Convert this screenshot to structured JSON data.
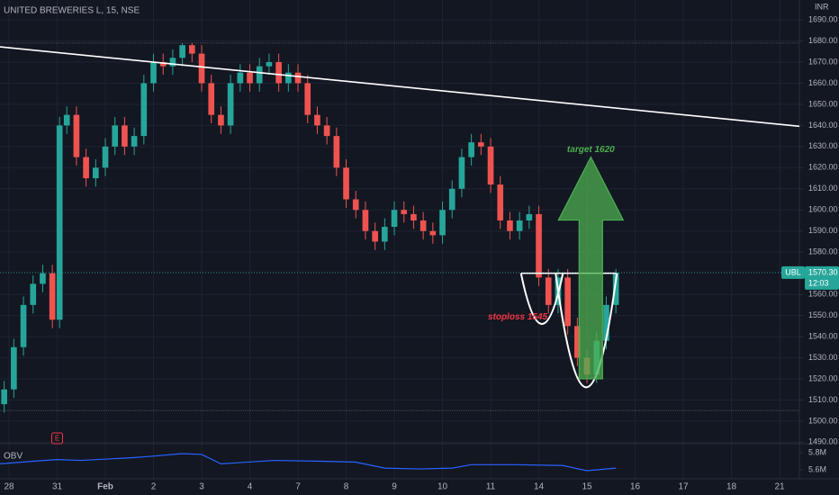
{
  "chart_data": {
    "type": "candlestick",
    "title": "UNITED BREWERIES L, 15, NSE",
    "currency": "INR",
    "xlim": [
      -0.187,
      16.41
    ],
    "xticks": [
      {
        "value": 0,
        "label": "28"
      },
      {
        "value": 1,
        "label": "31"
      },
      {
        "value": 2,
        "label": "Feb"
      },
      {
        "value": 3,
        "label": "2"
      },
      {
        "value": 4,
        "label": "3"
      },
      {
        "value": 5,
        "label": "4"
      },
      {
        "value": 6,
        "label": "7"
      },
      {
        "value": 7,
        "label": "8"
      },
      {
        "value": 8,
        "label": "9"
      },
      {
        "value": 9,
        "label": "10"
      },
      {
        "value": 10,
        "label": "11"
      },
      {
        "value": 11,
        "label": "14"
      },
      {
        "value": 12,
        "label": "15"
      },
      {
        "value": 13,
        "label": "16"
      },
      {
        "value": 14,
        "label": "17"
      },
      {
        "value": 15,
        "label": "18"
      },
      {
        "value": 16,
        "label": "21"
      }
    ],
    "ylim": [
      1489.3,
      1699.4
    ],
    "yticks": [
      {
        "value": 1490,
        "label": "1490.00"
      },
      {
        "value": 1500,
        "label": "1500.00"
      },
      {
        "value": 1510,
        "label": "1510.00"
      },
      {
        "value": 1520,
        "label": "1520.00"
      },
      {
        "value": 1530,
        "label": "1530.00"
      },
      {
        "value": 1540,
        "label": "1540.00"
      },
      {
        "value": 1550,
        "label": "1550.00"
      },
      {
        "value": 1560,
        "label": "1560.00"
      },
      {
        "value": 1580,
        "label": "1580.00"
      },
      {
        "value": 1590,
        "label": "1590.00"
      },
      {
        "value": 1600,
        "label": "1600.00"
      },
      {
        "value": 1610,
        "label": "1610.00"
      },
      {
        "value": 1620,
        "label": "1620.00"
      },
      {
        "value": 1630,
        "label": "1630.00"
      },
      {
        "value": 1640,
        "label": "1640.00"
      },
      {
        "value": 1650,
        "label": "1650.00"
      },
      {
        "value": 1660,
        "label": "1660.00"
      },
      {
        "value": 1670,
        "label": "1670.00"
      },
      {
        "value": 1680,
        "label": "1680.00"
      },
      {
        "value": 1690,
        "label": "1690.00"
      }
    ],
    "grid": true,
    "up_color": "#26a69a",
    "down_color": "#ef5350",
    "x": [
      -0.1,
      0.1,
      0.3,
      0.5,
      0.7,
      0.9,
      1.05,
      1.2,
      1.4,
      1.6,
      1.8,
      2.0,
      2.2,
      2.4,
      2.6,
      2.8,
      3.0,
      3.2,
      3.4,
      3.6,
      3.8,
      4.0,
      4.2,
      4.4,
      4.6,
      4.8,
      5.0,
      5.2,
      5.4,
      5.6,
      5.8,
      6.0,
      6.2,
      6.4,
      6.6,
      6.8,
      7.0,
      7.2,
      7.4,
      7.6,
      7.8,
      8.0,
      8.2,
      8.4,
      8.6,
      8.8,
      9.0,
      9.2,
      9.4,
      9.6,
      9.8,
      10.0,
      10.2,
      10.4,
      10.6,
      10.8,
      11.0,
      11.2,
      11.4,
      11.6,
      11.8,
      12.0,
      12.2,
      12.4,
      12.6
    ],
    "open": [
      1508,
      1515,
      1535,
      1555,
      1565,
      1570,
      1548,
      1640,
      1645,
      1625,
      1615,
      1620,
      1630,
      1640,
      1630,
      1635,
      1660,
      1670,
      1668,
      1672,
      1678,
      1674,
      1660,
      1645,
      1640,
      1660,
      1665,
      1660,
      1668,
      1670,
      1660,
      1665,
      1660,
      1645,
      1640,
      1635,
      1620,
      1605,
      1600,
      1590,
      1585,
      1592,
      1600,
      1598,
      1595,
      1590,
      1588,
      1600,
      1610,
      1625,
      1632,
      1630,
      1612,
      1595,
      1590,
      1595,
      1598,
      1568,
      1555,
      1568,
      1545,
      1530,
      1522,
      1538,
      1555
    ],
    "high": [
      1519,
      1539,
      1559,
      1569,
      1574,
      1574,
      1644,
      1649,
      1649,
      1629,
      1624,
      1634,
      1644,
      1644,
      1639,
      1664,
      1674,
      1674,
      1676,
      1679,
      1679,
      1678,
      1664,
      1649,
      1664,
      1669,
      1669,
      1672,
      1674,
      1674,
      1669,
      1669,
      1664,
      1649,
      1644,
      1639,
      1624,
      1609,
      1604,
      1594,
      1596,
      1604,
      1604,
      1602,
      1599,
      1594,
      1604,
      1614,
      1629,
      1636,
      1636,
      1634,
      1616,
      1599,
      1599,
      1602,
      1602,
      1572,
      1572,
      1572,
      1549,
      1534,
      1542,
      1559,
      1572
    ],
    "low": [
      1504,
      1511,
      1531,
      1551,
      1561,
      1544,
      1544,
      1636,
      1621,
      1611,
      1611,
      1616,
      1626,
      1626,
      1626,
      1631,
      1656,
      1664,
      1664,
      1668,
      1670,
      1656,
      1641,
      1636,
      1636,
      1656,
      1656,
      1656,
      1664,
      1656,
      1656,
      1656,
      1641,
      1636,
      1631,
      1616,
      1601,
      1596,
      1586,
      1581,
      1581,
      1588,
      1594,
      1591,
      1586,
      1584,
      1584,
      1596,
      1606,
      1621,
      1626,
      1608,
      1591,
      1586,
      1586,
      1591,
      1564,
      1551,
      1551,
      1541,
      1526,
      1518,
      1518,
      1534,
      1551
    ],
    "close": [
      1515,
      1535,
      1555,
      1565,
      1570,
      1548,
      1640,
      1645,
      1625,
      1615,
      1620,
      1630,
      1640,
      1630,
      1635,
      1660,
      1670,
      1668,
      1672,
      1678,
      1674,
      1660,
      1645,
      1640,
      1660,
      1665,
      1660,
      1668,
      1670,
      1660,
      1665,
      1660,
      1645,
      1640,
      1635,
      1620,
      1605,
      1600,
      1590,
      1585,
      1592,
      1600,
      1598,
      1595,
      1590,
      1588,
      1600,
      1610,
      1625,
      1632,
      1630,
      1612,
      1595,
      1590,
      1595,
      1598,
      1568,
      1555,
      1568,
      1545,
      1530,
      1522,
      1538,
      1555,
      1570.3
    ],
    "last": {
      "name": "UBL",
      "value": 1570.3,
      "label": "1570.30",
      "time": "12:03"
    },
    "levels": [
      1679,
      1505
    ],
    "trendline": {
      "x": [
        -0.187,
        16.41
      ],
      "y": [
        1677.2,
        1639.6
      ]
    },
    "neckline": {
      "x": [
        10.63,
        12.6
      ],
      "value": 1570
    },
    "cups": [
      {
        "x": [
          10.63,
          11.5
        ],
        "bottom": 1546
      },
      {
        "x": [
          11.35,
          12.62
        ],
        "bottom": 1516
      }
    ],
    "arrow": {
      "x": 12.08,
      "from": 1520,
      "to": 1625,
      "label": "target 1620"
    },
    "stoploss": {
      "x": 10.0,
      "value": 1545,
      "label": "stoploss 1545"
    },
    "events": [
      {
        "x": 1.0,
        "label": "E"
      }
    ],
    "obv": {
      "name": "OBV",
      "color": "#2962ff",
      "ylim": [
        5.495,
        5.874
      ],
      "yticks": [
        {
          "value": 5.8,
          "label": "5.8M"
        },
        {
          "value": 5.6,
          "label": "5.6M"
        }
      ],
      "x": [
        -0.187,
        0.5,
        1.0,
        1.5,
        2.5,
        3.0,
        3.6,
        4.0,
        4.4,
        5.5,
        6.5,
        7.2,
        7.8,
        8.5,
        9.2,
        9.6,
        10.5,
        11.5,
        12.0,
        12.6
      ],
      "values": [
        5.67,
        5.7,
        5.72,
        5.71,
        5.74,
        5.76,
        5.79,
        5.78,
        5.67,
        5.71,
        5.7,
        5.69,
        5.62,
        5.61,
        5.62,
        5.66,
        5.66,
        5.65,
        5.59,
        5.62
      ]
    }
  }
}
